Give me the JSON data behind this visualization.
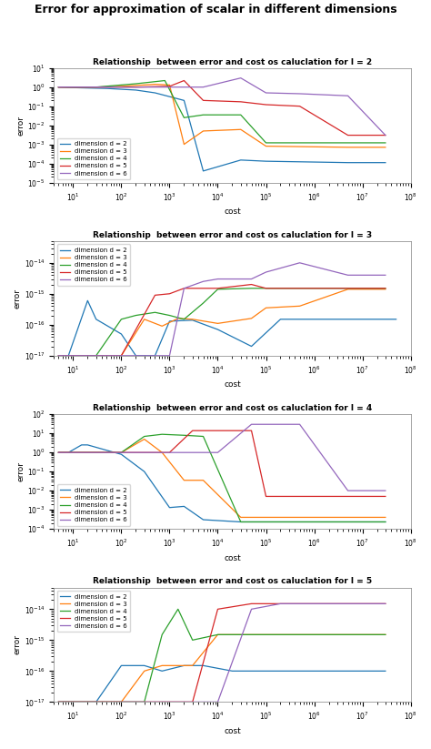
{
  "main_title": "Error for approximation of scalar in different dimensions",
  "subplot_titles": [
    "Relationship  between error and cost os caluclation for l = 2",
    "Relationship  between error and cost os caluclation for l = 3",
    "Relationship  between error and cost os caluclation for l = 4",
    "Relationship  between error and cost os caluclation for l = 5"
  ],
  "legend_labels": [
    "dimension d = 2",
    "dimension d = 3",
    "dimension d = 4",
    "dimension d = 5",
    "dimension d = 6"
  ],
  "colors": [
    "#1f77b4",
    "#ff7f0e",
    "#2ca02c",
    "#d62728",
    "#9467bd"
  ],
  "xlabel": "cost",
  "ylabel": "error",
  "plots": {
    "l2": {
      "d2": {
        "x": [
          5,
          8,
          20,
          50,
          200,
          500,
          2000,
          5000,
          30000,
          100000,
          5000000,
          30000000
        ],
        "y": [
          1.0,
          0.95,
          0.9,
          0.85,
          0.7,
          0.5,
          0.2,
          4e-05,
          0.00015,
          0.00013,
          0.00011,
          0.00011
        ]
      },
      "d3": {
        "x": [
          5,
          8,
          30,
          100,
          500,
          1000,
          2000,
          5000,
          30000,
          100000,
          5000000,
          30000000
        ],
        "y": [
          1.0,
          1.0,
          1.0,
          1.1,
          1.4,
          1.3,
          0.001,
          0.005,
          0.006,
          0.0008,
          0.0007,
          0.0007
        ]
      },
      "d4": {
        "x": [
          5,
          8,
          30,
          200,
          800,
          2000,
          5000,
          30000,
          100000,
          5000000,
          30000000
        ],
        "y": [
          1.0,
          1.0,
          1.0,
          1.5,
          2.2,
          0.025,
          0.035,
          0.035,
          0.0012,
          0.0012,
          0.0012
        ]
      },
      "d5": {
        "x": [
          5,
          8,
          30,
          200,
          1000,
          2000,
          5000,
          30000,
          100000,
          500000,
          5000000,
          30000000
        ],
        "y": [
          1.0,
          1.0,
          1.0,
          1.0,
          1.1,
          2.2,
          0.2,
          0.17,
          0.12,
          0.1,
          0.003,
          0.003
        ]
      },
      "d6": {
        "x": [
          5,
          8,
          30,
          200,
          1000,
          5000,
          30000,
          100000,
          500000,
          5000000,
          30000000
        ],
        "y": [
          1.0,
          1.0,
          1.0,
          1.0,
          1.0,
          1.0,
          3.0,
          0.5,
          0.45,
          0.35,
          0.003
        ]
      }
    },
    "l3": {
      "d2": {
        "x": [
          5,
          8,
          20,
          30,
          100,
          200,
          500,
          1000,
          3000,
          10000,
          50000,
          200000,
          1000000,
          10000000,
          50000000
        ],
        "y": [
          1e-17,
          1e-17,
          6e-16,
          1.5e-16,
          5e-17,
          1e-17,
          1e-17,
          1.3e-16,
          1.4e-16,
          7e-17,
          2e-17,
          1.5e-16,
          1.5e-16,
          1.5e-16,
          1.5e-16
        ]
      },
      "d3": {
        "x": [
          5,
          8,
          30,
          100,
          300,
          700,
          1500,
          3000,
          10000,
          50000,
          100000,
          500000,
          5000000,
          30000000
        ],
        "y": [
          1e-17,
          1e-17,
          1e-17,
          1e-17,
          1.5e-16,
          9e-17,
          1.6e-16,
          1.5e-16,
          1.1e-16,
          1.6e-16,
          3.5e-16,
          4e-16,
          1.4e-15,
          1.4e-15
        ]
      },
      "d4": {
        "x": [
          5,
          8,
          30,
          100,
          200,
          500,
          1000,
          2000,
          5000,
          10000,
          50000,
          100000,
          500000,
          5000000,
          30000000
        ],
        "y": [
          1e-17,
          1e-17,
          1e-17,
          1.5e-16,
          2e-16,
          2.5e-16,
          2e-16,
          1.5e-16,
          5e-16,
          1.4e-15,
          1.5e-15,
          1.5e-15,
          1.5e-15,
          1.5e-15,
          1.5e-15
        ]
      },
      "d5": {
        "x": [
          5,
          8,
          30,
          100,
          500,
          1000,
          2000,
          5000,
          10000,
          50000,
          100000,
          500000,
          5000000,
          30000000
        ],
        "y": [
          1e-17,
          1e-17,
          1e-17,
          1e-17,
          9e-16,
          1e-15,
          1.5e-15,
          1.5e-15,
          1.5e-15,
          2e-15,
          1.5e-15,
          1.5e-15,
          1.5e-15,
          1.5e-15
        ]
      },
      "d6": {
        "x": [
          5,
          8,
          30,
          100,
          1000,
          2000,
          5000,
          10000,
          50000,
          100000,
          500000,
          5000000,
          30000000
        ],
        "y": [
          1e-17,
          1e-17,
          1e-17,
          1e-17,
          1e-17,
          1.5e-15,
          2.5e-15,
          3e-15,
          3e-15,
          5e-15,
          1e-14,
          4e-15,
          4e-15
        ]
      }
    },
    "l4": {
      "d2": {
        "x": [
          5,
          8,
          15,
          20,
          50,
          100,
          300,
          1000,
          2000,
          5000,
          30000,
          100000,
          500000,
          5000000,
          30000000
        ],
        "y": [
          1.0,
          1.0,
          2.5,
          2.5,
          1.3,
          0.8,
          0.1,
          0.0013,
          0.0015,
          0.0003,
          0.00023,
          0.00023,
          0.00023,
          0.00023,
          0.00023
        ]
      },
      "d3": {
        "x": [
          5,
          8,
          15,
          30,
          100,
          300,
          700,
          2000,
          5000,
          30000,
          100000,
          500000,
          5000000,
          30000000
        ],
        "y": [
          1.0,
          1.0,
          1.0,
          1.0,
          1.0,
          5.0,
          1.0,
          0.035,
          0.035,
          0.0004,
          0.0004,
          0.0004,
          0.0004,
          0.0004
        ]
      },
      "d4": {
        "x": [
          5,
          8,
          30,
          100,
          300,
          700,
          2000,
          5000,
          30000,
          100000,
          500000,
          5000000,
          30000000
        ],
        "y": [
          1.0,
          1.0,
          1.0,
          1.0,
          7.0,
          9.0,
          8.0,
          7.0,
          0.00023,
          0.00023,
          0.00023,
          0.00023,
          0.00023
        ]
      },
      "d5": {
        "x": [
          5,
          8,
          30,
          200,
          1000,
          3000,
          10000,
          50000,
          100000,
          500000,
          5000000,
          30000000
        ],
        "y": [
          1.0,
          1.0,
          1.0,
          1.0,
          1.0,
          14.0,
          14.0,
          14.0,
          0.005,
          0.005,
          0.005,
          0.005
        ]
      },
      "d6": {
        "x": [
          5,
          8,
          30,
          200,
          1000,
          3000,
          10000,
          50000,
          100000,
          500000,
          5000000,
          30000000
        ],
        "y": [
          1.0,
          1.0,
          1.0,
          1.0,
          1.0,
          1.0,
          1.0,
          30.0,
          30.0,
          30.0,
          0.01,
          0.01
        ]
      }
    },
    "l5": {
      "d2": {
        "x": [
          5,
          8,
          15,
          30,
          100,
          300,
          700,
          2000,
          5000,
          20000,
          100000,
          500000,
          5000000,
          30000000
        ],
        "y": [
          1e-17,
          1e-17,
          1e-17,
          1e-17,
          1.5e-16,
          1.5e-16,
          1e-16,
          1.5e-16,
          1.5e-16,
          1e-16,
          1e-16,
          1e-16,
          1e-16,
          1e-16
        ]
      },
      "d3": {
        "x": [
          5,
          8,
          15,
          30,
          100,
          300,
          700,
          1500,
          3000,
          10000,
          50000,
          200000,
          5000000,
          30000000
        ],
        "y": [
          1e-17,
          1e-17,
          1e-17,
          1e-17,
          1e-17,
          1e-16,
          1.5e-16,
          1.5e-16,
          1.5e-16,
          1.5e-15,
          1.5e-15,
          1.5e-15,
          1.5e-15,
          1.5e-15
        ]
      },
      "d4": {
        "x": [
          5,
          8,
          15,
          30,
          100,
          300,
          700,
          1500,
          3000,
          10000,
          50000,
          200000,
          5000000,
          30000000
        ],
        "y": [
          1e-17,
          1e-17,
          1e-17,
          1e-17,
          1e-17,
          1e-17,
          1.5e-15,
          1e-14,
          1e-15,
          1.5e-15,
          1.5e-15,
          1.5e-15,
          1.5e-15,
          1.5e-15
        ]
      },
      "d5": {
        "x": [
          5,
          8,
          15,
          30,
          100,
          300,
          700,
          1500,
          3000,
          10000,
          50000,
          200000,
          5000000,
          30000000
        ],
        "y": [
          1e-17,
          1e-17,
          1e-17,
          1e-17,
          1e-17,
          1e-17,
          1e-17,
          1e-17,
          1e-17,
          1e-14,
          1.5e-14,
          1.5e-14,
          1.5e-14,
          1.5e-14
        ]
      },
      "d6": {
        "x": [
          5,
          8,
          15,
          30,
          100,
          300,
          700,
          1500,
          3000,
          10000,
          50000,
          200000,
          5000000,
          30000000
        ],
        "y": [
          1e-17,
          1e-17,
          1e-17,
          1e-17,
          1e-17,
          1e-17,
          1e-17,
          1e-17,
          1e-17,
          1e-17,
          1e-14,
          1.5e-14,
          1.5e-14,
          1.5e-14
        ]
      }
    }
  },
  "ylims": {
    "l2": [
      1e-05,
      10
    ],
    "l3": [
      1e-17,
      5e-14
    ],
    "l4": [
      0.0001,
      100
    ],
    "l5": [
      1e-17,
      5e-14
    ]
  },
  "legend_locs": [
    "lower left",
    "upper left",
    "lower left",
    "upper left"
  ],
  "xlim": [
    4,
    100000000.0
  ]
}
